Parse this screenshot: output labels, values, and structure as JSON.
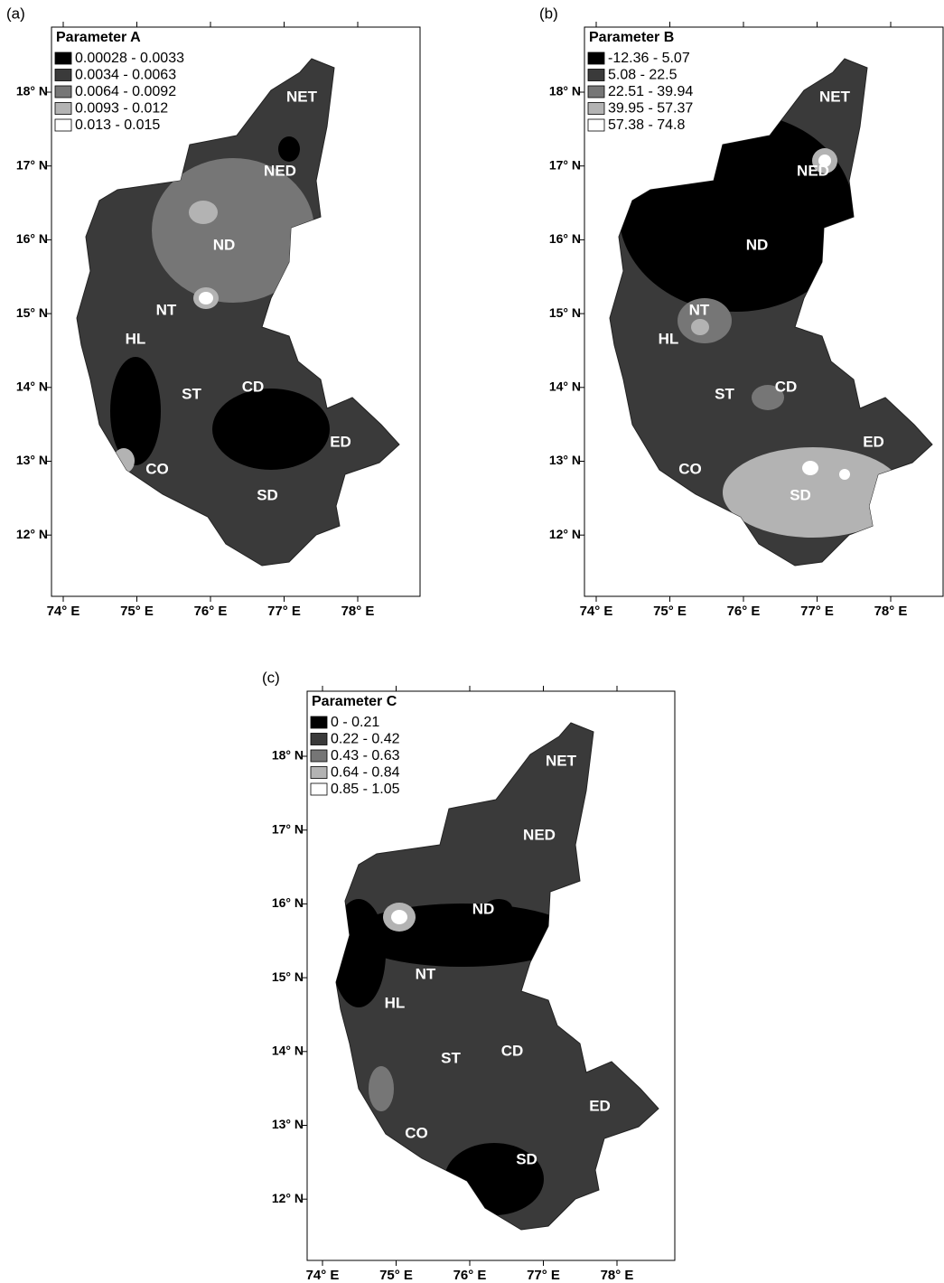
{
  "panels": [
    {
      "label": "(a)",
      "title": "Parameter A",
      "legend": [
        {
          "range": "0.00028 - 0.0033",
          "color": "#000000"
        },
        {
          "range": "0.0034 - 0.0063",
          "color": "#3a3a3a"
        },
        {
          "range": "0.0064 - 0.0092",
          "color": "#767676"
        },
        {
          "range": "0.0093 - 0.012",
          "color": "#b3b3b3"
        },
        {
          "range": "0.013 - 0.015",
          "color": "#ffffff"
        }
      ],
      "regions": [
        "NET",
        "NED",
        "ND",
        "NT",
        "HL",
        "ST",
        "CD",
        "ED",
        "CO",
        "SD"
      ],
      "xticks": [
        "74° E",
        "75° E",
        "76° E",
        "77° E",
        "78° E"
      ],
      "yticks": [
        "18° N",
        "17° N",
        "16° N",
        "15° N",
        "14° N",
        "13° N",
        "12° N"
      ]
    },
    {
      "label": "(b)",
      "title": "Parameter B",
      "legend": [
        {
          "range": "-12.36 - 5.07",
          "color": "#000000"
        },
        {
          "range": "5.08 - 22.5",
          "color": "#3a3a3a"
        },
        {
          "range": "22.51 - 39.94",
          "color": "#767676"
        },
        {
          "range": "39.95 - 57.37",
          "color": "#b3b3b3"
        },
        {
          "range": "57.38 - 74.8",
          "color": "#ffffff"
        }
      ],
      "regions": [
        "NET",
        "NED",
        "ND",
        "NT",
        "HL",
        "ST",
        "CD",
        "ED",
        "CO",
        "SD"
      ],
      "xticks": [
        "74° E",
        "75° E",
        "76° E",
        "77° E",
        "78° E"
      ],
      "yticks": [
        "18° N",
        "17° N",
        "16° N",
        "15° N",
        "14° N",
        "13° N",
        "12° N"
      ]
    },
    {
      "label": "(c)",
      "title": "Parameter C",
      "legend": [
        {
          "range": "0 - 0.21",
          "color": "#000000"
        },
        {
          "range": "0.22 - 0.42",
          "color": "#3a3a3a"
        },
        {
          "range": "0.43 - 0.63",
          "color": "#767676"
        },
        {
          "range": "0.64 - 0.84",
          "color": "#b3b3b3"
        },
        {
          "range": "0.85 - 1.05",
          "color": "#ffffff"
        }
      ],
      "regions": [
        "NET",
        "NED",
        "ND",
        "NT",
        "HL",
        "ST",
        "CD",
        "ED",
        "CO",
        "SD"
      ],
      "xticks": [
        "74° E",
        "75° E",
        "76° E",
        "77° E",
        "78° E"
      ],
      "yticks": [
        "18° N",
        "17° N",
        "16° N",
        "15° N",
        "14° N",
        "13° N",
        "12° N"
      ]
    }
  ]
}
